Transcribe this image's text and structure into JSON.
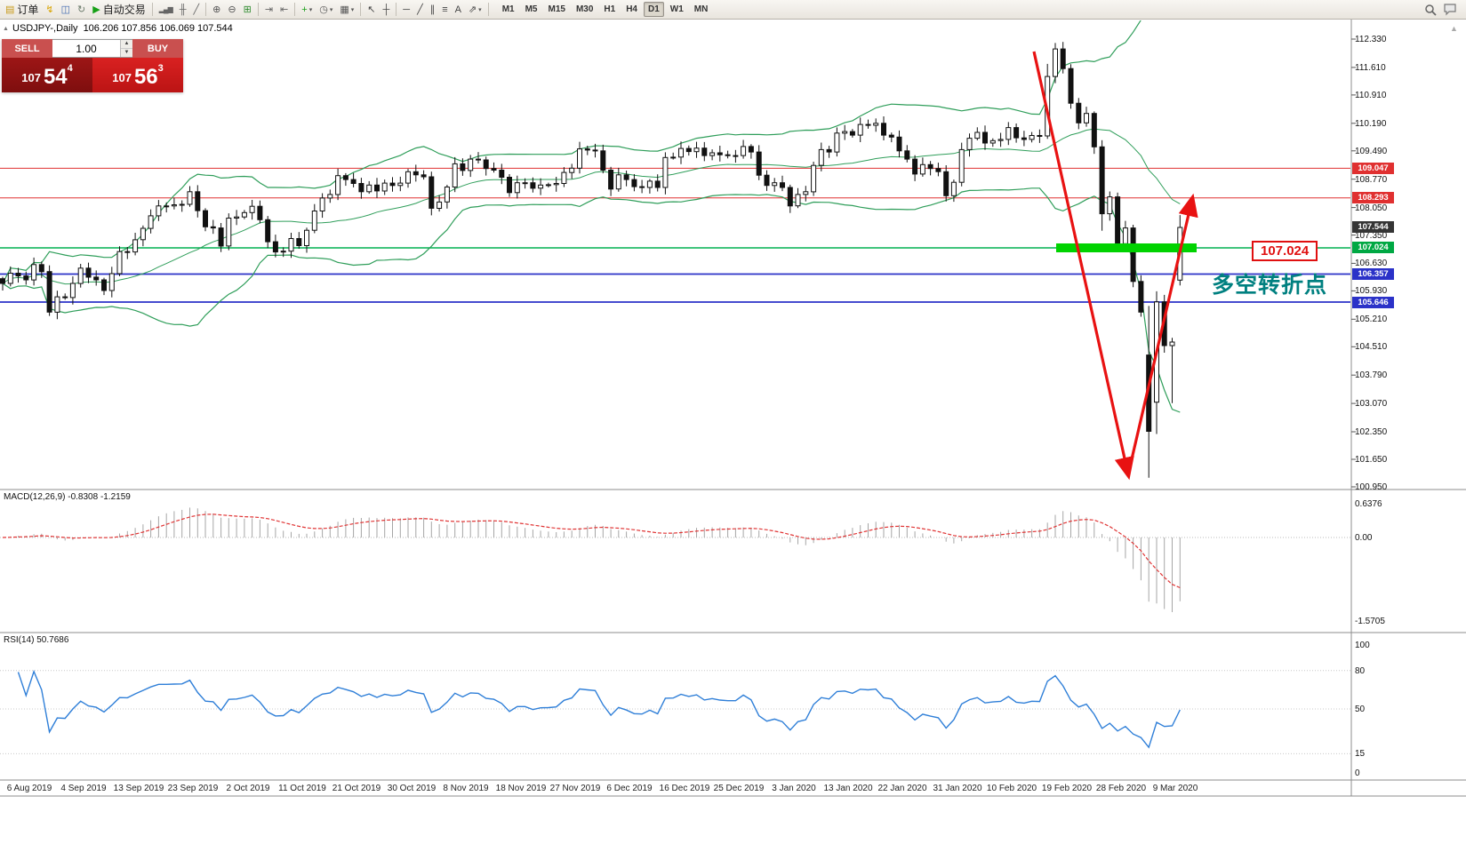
{
  "toolbar": {
    "items": [
      {
        "name": "new-order-button",
        "glyph": "▤",
        "color": "#c89a18",
        "label": "订单"
      },
      {
        "name": "lightning-icon",
        "glyph": "↯",
        "color": "#d8a400"
      },
      {
        "name": "profile-icon",
        "glyph": "◫",
        "color": "#3f69b0"
      },
      {
        "name": "refresh-icon",
        "glyph": "↻",
        "color": "#6a7a6a"
      },
      {
        "name": "auto-trading-button",
        "glyph": "▶",
        "color": "#16a016",
        "label": "自动交易"
      },
      {
        "name": "sep"
      },
      {
        "name": "bar-chart-button",
        "glyph": "▂▄▆",
        "color": "#666666",
        "blocks": true
      },
      {
        "name": "candlestick-button",
        "glyph": "╫",
        "color": "#666666"
      },
      {
        "name": "line-chart-button",
        "glyph": "╱",
        "color": "#666666"
      },
      {
        "name": "sep"
      },
      {
        "name": "zoom-in-button",
        "glyph": "⊕",
        "color": "#555555"
      },
      {
        "name": "zoom-out-button",
        "glyph": "⊖",
        "color": "#555555"
      },
      {
        "name": "tile-windows-button",
        "glyph": "⊞",
        "color": "#2e8b2e"
      },
      {
        "name": "sep"
      },
      {
        "name": "auto-scroll-button",
        "glyph": "⇥",
        "color": "#666666"
      },
      {
        "name": "chart-shift-button",
        "glyph": "⇤",
        "color": "#666666"
      },
      {
        "name": "sep"
      },
      {
        "name": "indicators-button",
        "glyph": "+",
        "color": "#18a018",
        "caret": true
      },
      {
        "name": "periods-button",
        "glyph": "◷",
        "color": "#555555",
        "caret": true
      },
      {
        "name": "templates-button",
        "glyph": "▦",
        "color": "#555555",
        "caret": true
      },
      {
        "name": "sep"
      },
      {
        "name": "cursor-button",
        "glyph": "↖",
        "color": "#444444"
      },
      {
        "name": "crosshair-button",
        "glyph": "┼",
        "color": "#444444"
      },
      {
        "name": "sep"
      },
      {
        "name": "hline-tool-button",
        "glyph": "─",
        "color": "#444444"
      },
      {
        "name": "trendline-tool-button",
        "glyph": "╱",
        "color": "#444444"
      },
      {
        "name": "channel-tool-button",
        "glyph": "∥",
        "color": "#444444"
      },
      {
        "name": "fibo-tool-button",
        "glyph": "≡",
        "color": "#444444"
      },
      {
        "name": "text-tool-button",
        "glyph": "A",
        "color": "#444444"
      },
      {
        "name": "shapes-tool-button",
        "glyph": "⇗",
        "color": "#444444",
        "caret": true
      },
      {
        "name": "sep"
      }
    ],
    "timeframes": [
      "M1",
      "M5",
      "M15",
      "M30",
      "H1",
      "H4",
      "D1",
      "W1",
      "MN"
    ],
    "active_timeframe": "D1",
    "caret_glyph": "▾"
  },
  "trade_panel": {
    "sell_label": "SELL",
    "buy_label": "BUY",
    "volume": "1.00",
    "sell_big": "107",
    "sell_pips": "54",
    "sell_sup": "4",
    "buy_big": "107",
    "buy_pips": "56",
    "buy_sup": "3"
  },
  "chart_header": {
    "collapse_glyph": "▲",
    "title": "USDJPY-,Daily",
    "ohlc_text": "106.206 107.856 106.069 107.544"
  },
  "annotations": {
    "price_box_text": "107.024",
    "pivot_text": "多空转折点",
    "pivot_color": "#008080",
    "arrow_color": "#e81212",
    "highlight_color": "#00d300"
  },
  "chart_data": {
    "type": "candlestick",
    "symbol": "USDJPY-",
    "timeframe": "Daily",
    "current_ohlc": {
      "open": 106.206,
      "high": 107.856,
      "low": 106.069,
      "close": 107.544
    },
    "closes": [
      106.12,
      106.38,
      106.31,
      106.21,
      106.6,
      106.42,
      105.39,
      105.78,
      105.76,
      106.12,
      106.51,
      106.28,
      106.21,
      105.94,
      106.37,
      106.93,
      106.92,
      107.23,
      107.52,
      107.84,
      108.09,
      108.09,
      108.12,
      108.13,
      108.45,
      107.97,
      107.56,
      107.53,
      107.07,
      107.78,
      107.81,
      107.92,
      108.08,
      107.74,
      107.18,
      106.92,
      106.94,
      107.26,
      107.08,
      107.47,
      107.96,
      108.29,
      108.38,
      108.86,
      108.76,
      108.66,
      108.45,
      108.62,
      108.47,
      108.67,
      108.61,
      108.67,
      108.96,
      108.88,
      108.83,
      108.03,
      108.19,
      108.57,
      109.16,
      108.99,
      109.28,
      109.26,
      109.04,
      109.0,
      108.82,
      108.43,
      108.68,
      108.68,
      108.54,
      108.62,
      108.63,
      108.66,
      108.94,
      109.05,
      109.54,
      109.51,
      109.49,
      109.0,
      108.52,
      108.88,
      108.76,
      108.58,
      108.56,
      108.72,
      108.56,
      109.32,
      109.33,
      109.55,
      109.47,
      109.56,
      109.37,
      109.44,
      109.39,
      109.37,
      109.37,
      109.6,
      109.46,
      108.87,
      108.61,
      108.68,
      108.56,
      108.09,
      108.38,
      108.45,
      109.12,
      109.52,
      109.46,
      109.94,
      109.98,
      109.89,
      110.16,
      110.14,
      110.19,
      109.89,
      109.84,
      109.49,
      109.28,
      108.9,
      109.14,
      109.04,
      108.96,
      108.35,
      108.69,
      109.52,
      109.81,
      109.96,
      109.69,
      109.75,
      109.78,
      110.08,
      109.82,
      109.78,
      109.88,
      109.87,
      111.38,
      112.08,
      111.58,
      110.7,
      110.2,
      110.44,
      109.59,
      107.89,
      108.32,
      107.13,
      107.53,
      106.17,
      105.39,
      102.36,
      105.65,
      104.54,
      104.63,
      107.54
    ],
    "candle_overrides": {
      "134": {
        "h": 111.7
      },
      "135": {
        "h": 112.23
      },
      "141": {
        "l": 107.46
      },
      "147": {
        "o": 104.3,
        "l": 101.18
      },
      "148": {
        "o": 103.1,
        "h": 105.92
      },
      "150": {
        "l": 103.08
      },
      "151": {
        "o": 106.206,
        "h": 107.856,
        "l": 106.069,
        "c": 107.544
      }
    },
    "wick_base": 0.05,
    "wick_var": 0.13,
    "up_color": "#ffffff",
    "down_color": "#111111",
    "outline_color": "#111111",
    "bollinger": {
      "period": 20,
      "deviation": 2,
      "color": "#2f9e5a"
    },
    "levels": [
      {
        "price": 109.047,
        "text": "109.047",
        "bg": "#e03030",
        "line": "#e03030",
        "lw": 1
      },
      {
        "price": 108.293,
        "text": "108.293",
        "bg": "#e03030",
        "line": "#e03030",
        "lw": 1
      },
      {
        "price": 107.544,
        "text": "107.544",
        "bg": "#353535",
        "line": null,
        "lw": 0
      },
      {
        "price": 107.024,
        "text": "107.024",
        "bg": "#00a843",
        "line": "#00b050",
        "lw": 1.6
      },
      {
        "price": 106.357,
        "text": "106.357",
        "bg": "#2b32c8",
        "line": "#2b32c8",
        "lw": 1.8
      },
      {
        "price": 105.646,
        "text": "105.646",
        "bg": "#2b32c8",
        "line": "#2b32c8",
        "lw": 1.8
      }
    ],
    "price_ticks": [
      "112.330",
      "111.610",
      "110.910",
      "110.190",
      "109.490",
      "108.770",
      "108.050",
      "107.350",
      "106.630",
      "105.930",
      "105.210",
      "104.510",
      "103.790",
      "103.070",
      "102.350",
      "101.650",
      "100.950"
    ],
    "macd": {
      "label": "MACD(12,26,9)",
      "values_text": "-0.8308 -1.2159",
      "fast": 12,
      "slow": 26,
      "signal_period": 9,
      "ticks": [
        "0.6376",
        "0.00",
        "-1.5705"
      ],
      "hist_color": "#a6a6a6",
      "signal_color": "#e03535"
    },
    "rsi": {
      "label": "RSI(14)",
      "value_text": "50.7686",
      "period": 14,
      "ticks": [
        "100",
        "80",
        "50",
        "15",
        "0"
      ],
      "levels": [
        80,
        50,
        15
      ],
      "color": "#2f7fd8"
    },
    "dates": [
      "6 Aug 2019",
      "4 Sep 2019",
      "13 Sep 2019",
      "23 Sep 2019",
      "2 Oct 2019",
      "11 Oct 2019",
      "21 Oct 2019",
      "30 Oct 2019",
      "8 Nov 2019",
      "18 Nov 2019",
      "27 Nov 2019",
      "6 Dec 2019",
      "16 Dec 2019",
      "25 Dec 2019",
      "3 Jan 2020",
      "13 Jan 2020",
      "22 Jan 2020",
      "31 Jan 2020",
      "10 Feb 2020",
      "19 Feb 2020",
      "28 Feb 2020",
      "9 Mar 2020"
    ]
  }
}
